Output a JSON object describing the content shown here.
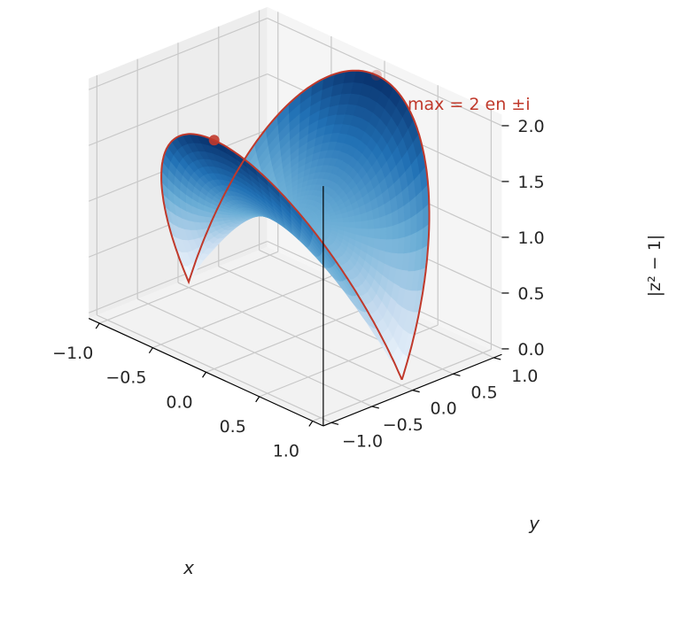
{
  "chart_data": {
    "type": "surface3d",
    "function": "|z^2 - 1| on the closed unit disk, z = x + i y",
    "xlabel": "x",
    "ylabel": "y",
    "zlabel": "|z² − 1|",
    "x_ticks": [
      "−1.0",
      "−0.5",
      "0.0",
      "0.5",
      "1.0"
    ],
    "y_ticks": [
      "−1.0",
      "−0.5",
      "0.0",
      "0.5",
      "1.0"
    ],
    "z_ticks": [
      "0.0",
      "0.5",
      "1.0",
      "1.5",
      "2.0"
    ],
    "xlim": [
      -1.1,
      1.1
    ],
    "ylim": [
      -1.1,
      1.1
    ],
    "zlim": [
      -0.05,
      2.1
    ],
    "grid": true,
    "colormap": "Blues",
    "boundary_color": "#c0392b",
    "maximum_points": [
      {
        "x": 0,
        "y": 1,
        "z": 2
      },
      {
        "x": 0,
        "y": -1,
        "z": 2
      }
    ],
    "annotation": {
      "text": "max = 2 en ±i",
      "color": "#c0392b"
    }
  }
}
